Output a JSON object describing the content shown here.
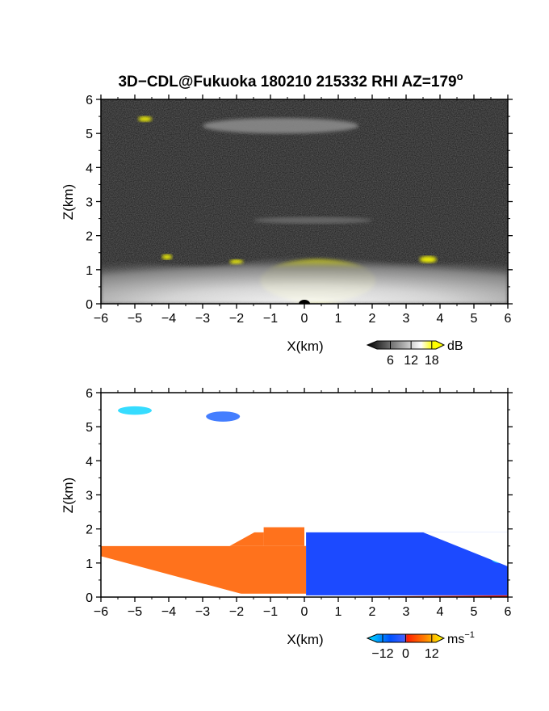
{
  "figure": {
    "title": "3D−CDL@Fukuoka 180210 215332 RHI AZ=179",
    "title_degree": "o"
  },
  "chart_data": [
    {
      "type": "heatmap",
      "name": "backscatter-panel",
      "xlabel": "X(km)",
      "ylabel": "Z(km)",
      "xlim": [
        -6,
        6
      ],
      "ylim": [
        0,
        6
      ],
      "xticks": [
        "−6",
        "−5",
        "−4",
        "−3",
        "−2",
        "−1",
        "0",
        "1",
        "2",
        "3",
        "4",
        "5",
        "6"
      ],
      "yticks": [
        "0",
        "1",
        "2",
        "3",
        "4",
        "5",
        "6"
      ],
      "background": "#151515",
      "colorbar": {
        "unit": "dB",
        "ticks": [
          "6",
          "12",
          "18"
        ],
        "colors": [
          "#000000",
          "#555555",
          "#aaaaaa",
          "#ffffff",
          "#ffff00"
        ]
      },
      "features": [
        {
          "label": "saturated-echo",
          "color": "#ffff00",
          "regions": [
            {
              "x": [
                -1.3,
                2.1
              ],
              "z": [
                0.05,
                1.3
              ]
            },
            {
              "x": [
                -4.9,
                -4.5
              ],
              "z": [
                5.35,
                5.5
              ]
            },
            {
              "x": [
                3.4,
                3.9
              ],
              "z": [
                1.2,
                1.4
              ]
            },
            {
              "x": [
                -4.2,
                -3.9
              ],
              "z": [
                1.3,
                1.45
              ]
            },
            {
              "x": [
                -2.2,
                -1.8
              ],
              "z": [
                1.15,
                1.3
              ]
            }
          ]
        },
        {
          "label": "boundary-layer",
          "color": "#e6e6e6",
          "regions": [
            {
              "x": [
                -6,
                6
              ],
              "z": [
                0.0,
                1.4
              ]
            }
          ]
        },
        {
          "label": "aerosol-layer",
          "color": "#6a6a6a",
          "regions": [
            {
              "x": [
                -1.5,
                2.0
              ],
              "z": [
                2.35,
                2.55
              ]
            }
          ]
        },
        {
          "label": "upper-cloud",
          "color": "#8a8a8a",
          "regions": [
            {
              "x": [
                -3.0,
                1.6
              ],
              "z": [
                5.0,
                5.45
              ]
            }
          ]
        }
      ]
    },
    {
      "type": "heatmap",
      "name": "velocity-panel",
      "xlabel": "X(km)",
      "ylabel": "Z(km)",
      "xlim": [
        -6,
        6
      ],
      "ylim": [
        0,
        6
      ],
      "xticks": [
        "−6",
        "−5",
        "−4",
        "−3",
        "−2",
        "−1",
        "0",
        "1",
        "2",
        "3",
        "4",
        "5",
        "6"
      ],
      "yticks": [
        "0",
        "1",
        "2",
        "3",
        "4",
        "5",
        "6"
      ],
      "background": "#ffffff",
      "colorbar": {
        "unit": "ms",
        "unit_exp": "−1",
        "ticks": [
          "−12",
          "0",
          "12"
        ],
        "colors": [
          "#00e5ff",
          "#0050ff",
          "#4060ff",
          "#ff2000",
          "#ff8000",
          "#ffff00"
        ]
      },
      "features": [
        {
          "label": "receding-flow",
          "color": "#ff6a10",
          "regions": [
            {
              "x": [
                -6,
                0.05
              ],
              "z": [
                0.1,
                1.5
              ]
            },
            {
              "x": [
                -1.2,
                0.0
              ],
              "z": [
                1.5,
                2.05
              ]
            },
            {
              "x": [
                -2.2,
                -1.2
              ],
              "z": [
                1.5,
                1.9
              ]
            }
          ]
        },
        {
          "label": "approaching-flow",
          "color": "#1040ff",
          "regions": [
            {
              "x": [
                0.05,
                6
              ],
              "z": [
                0.05,
                1.9
              ]
            }
          ]
        },
        {
          "label": "fast-approaching-clouds",
          "color": "#20d8ff",
          "regions": [
            {
              "x": [
                -5.5,
                -4.5
              ],
              "z": [
                5.35,
                5.6
              ]
            },
            {
              "x": [
                5.5,
                6.0
              ],
              "z": [
                1.0,
                1.3
              ]
            }
          ]
        },
        {
          "label": "mid-cloud",
          "color": "#3070ff",
          "regions": [
            {
              "x": [
                -2.9,
                -1.9
              ],
              "z": [
                5.15,
                5.45
              ]
            }
          ]
        }
      ]
    }
  ]
}
